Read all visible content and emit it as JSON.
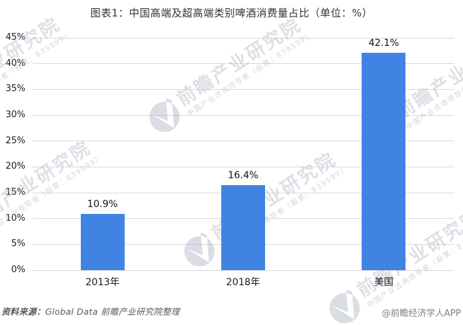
{
  "title": "图表1：中国高端及超高端类别啤酒消费量占比（单位：%）",
  "chart_data": {
    "type": "bar",
    "title": "图表1：中国高端及超高端类别啤酒消费量占比（单位：%）",
    "categories": [
      "2013年",
      "2018年",
      "美国"
    ],
    "values": [
      10.9,
      16.4,
      42.1
    ],
    "value_labels": [
      "10.9%",
      "16.4%",
      "42.1%"
    ],
    "ylim": [
      0,
      45
    ],
    "ytick_step": 5,
    "ytick_labels": [
      "0%",
      "5%",
      "10%",
      "15%",
      "20%",
      "25%",
      "30%",
      "35%",
      "40%",
      "45%"
    ],
    "xlabel": "",
    "ylabel": "",
    "grid": "horizontal",
    "legend": "none",
    "bar_color": "#4183e3",
    "grid_color": "#d9d9d9"
  },
  "watermark": {
    "big": "前瞻产业研究院",
    "small": "中国产业咨询领导者（股票：839599）"
  },
  "footer": {
    "source_label": "资料来源：",
    "source_text": "Global Data 前瞻产业研究院整理",
    "credit": "@前瞻经济学人APP"
  }
}
